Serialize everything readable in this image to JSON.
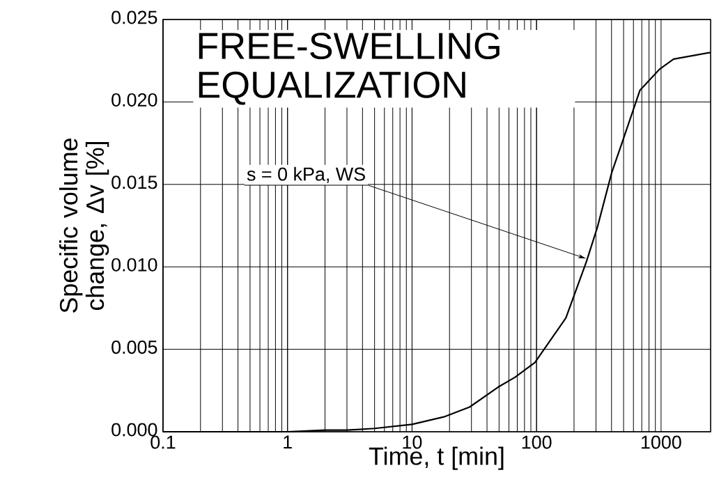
{
  "chart_data": {
    "type": "line",
    "title": "FREE-SWELLING EQUALIZATION",
    "xlabel": "Time, t [min]",
    "ylabel": "Specific volume change, Δv [%]",
    "log": "x",
    "grid": true,
    "xlim": [
      0.1,
      2500
    ],
    "xticks": [
      0.1,
      1,
      10,
      100,
      1000
    ],
    "ylim": [
      0,
      0.025
    ],
    "yticks": [
      {
        "value": 0,
        "label": "0.000"
      },
      {
        "value": 0.005,
        "label": "0.005"
      },
      {
        "value": 0.01,
        "label": "0.010"
      },
      {
        "value": 0.015,
        "label": "0.015"
      },
      {
        "value": 0.02,
        "label": "0.020"
      },
      {
        "value": 0.025,
        "label": "0.025"
      }
    ],
    "annotations": [
      {
        "text": "s = 0 kPa, WS",
        "x": 250,
        "y": 0.0105
      }
    ],
    "series": [
      {
        "color": "#000000",
        "x": [
          0.1,
          0.5,
          1,
          2,
          3,
          5,
          10,
          18,
          29,
          49,
          67,
          97,
          172,
          251,
          308,
          401,
          495,
          676,
          977,
          1260,
          2500
        ],
        "values": [
          0,
          0,
          0,
          0.0001,
          0.0001,
          0.0002,
          0.00045,
          0.0009,
          0.0015,
          0.0027,
          0.0033,
          0.0042,
          0.0069,
          0.0103,
          0.0124,
          0.0157,
          0.0177,
          0.0207,
          0.022,
          0.0226,
          0.023
        ]
      }
    ]
  }
}
